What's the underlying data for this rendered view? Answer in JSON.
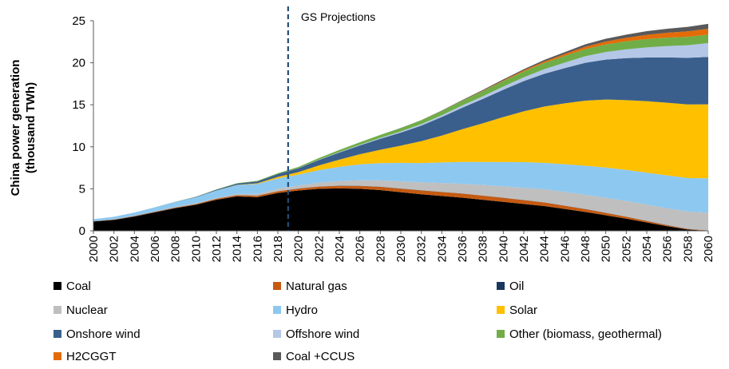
{
  "chart_data": {
    "type": "area",
    "stacked": true,
    "ylabel_line1": "China power generation",
    "ylabel_line2": "(thousand TWh)",
    "ylim": [
      0,
      25
    ],
    "yticks": [
      0,
      5,
      10,
      15,
      20,
      25
    ],
    "x": [
      2000,
      2002,
      2004,
      2006,
      2008,
      2010,
      2012,
      2014,
      2016,
      2018,
      2020,
      2022,
      2024,
      2026,
      2028,
      2030,
      2032,
      2034,
      2036,
      2038,
      2040,
      2042,
      2044,
      2046,
      2048,
      2050,
      2052,
      2054,
      2056,
      2058,
      2060
    ],
    "xtick_labels": [
      "2000",
      "2002",
      "2004",
      "2006",
      "2008",
      "2010",
      "2012",
      "2014",
      "2016",
      "2018",
      "2020",
      "2022",
      "2024",
      "2026",
      "2028",
      "2030",
      "2032",
      "2034",
      "2036",
      "2038",
      "2040",
      "2042",
      "2044",
      "2046",
      "2048",
      "2050",
      "2052",
      "2054",
      "2056",
      "2058",
      "2060"
    ],
    "projection_start": 2019,
    "annotation": "GS Projections",
    "grid": false,
    "legend_position": "bottom",
    "series": [
      {
        "name": "Coal",
        "color": "#000000",
        "values": [
          1.1,
          1.3,
          1.7,
          2.2,
          2.7,
          3.1,
          3.7,
          4.1,
          4.0,
          4.5,
          4.8,
          5.0,
          5.05,
          5.0,
          4.85,
          4.6,
          4.35,
          4.15,
          3.95,
          3.7,
          3.45,
          3.2,
          2.95,
          2.6,
          2.25,
          1.85,
          1.45,
          1.0,
          0.55,
          0.15,
          0.0
        ]
      },
      {
        "name": "Natural gas",
        "color": "#c55a11",
        "values": [
          0.02,
          0.03,
          0.04,
          0.05,
          0.06,
          0.08,
          0.1,
          0.13,
          0.17,
          0.2,
          0.22,
          0.26,
          0.3,
          0.34,
          0.38,
          0.42,
          0.45,
          0.47,
          0.48,
          0.48,
          0.47,
          0.45,
          0.42,
          0.38,
          0.33,
          0.28,
          0.22,
          0.17,
          0.12,
          0.07,
          0.03
        ]
      },
      {
        "name": "Oil",
        "color": "#17375e",
        "values": [
          0.03,
          0.03,
          0.03,
          0.03,
          0.02,
          0.02,
          0.02,
          0.02,
          0.02,
          0.02,
          0.02,
          0.02,
          0.02,
          0.02,
          0.02,
          0.02,
          0.02,
          0.02,
          0.02,
          0.02,
          0.02,
          0.02,
          0.02,
          0.02,
          0.02,
          0.02,
          0.02,
          0.02,
          0.02,
          0.02,
          0.02
        ]
      },
      {
        "name": "Nuclear",
        "color": "#bfbfbf",
        "values": [
          0.02,
          0.03,
          0.05,
          0.06,
          0.07,
          0.07,
          0.1,
          0.13,
          0.2,
          0.29,
          0.35,
          0.45,
          0.55,
          0.65,
          0.75,
          0.85,
          0.95,
          1.05,
          1.15,
          1.25,
          1.35,
          1.45,
          1.55,
          1.62,
          1.7,
          1.78,
          1.86,
          1.94,
          2.0,
          2.05,
          2.1
        ]
      },
      {
        "name": "Hydro",
        "color": "#8dc8f0",
        "values": [
          0.22,
          0.29,
          0.36,
          0.44,
          0.58,
          0.72,
          0.87,
          1.06,
          1.19,
          1.23,
          1.3,
          1.5,
          1.7,
          1.9,
          2.05,
          2.2,
          2.3,
          2.45,
          2.6,
          2.75,
          2.9,
          3.05,
          3.15,
          3.3,
          3.45,
          3.6,
          3.7,
          3.8,
          3.9,
          4.0,
          4.1
        ]
      },
      {
        "name": "Solar",
        "color": "#ffc000",
        "values": [
          0.0,
          0.0,
          0.0,
          0.0,
          0.0,
          0.0,
          0.01,
          0.03,
          0.07,
          0.18,
          0.3,
          0.55,
          0.85,
          1.2,
          1.6,
          2.05,
          2.6,
          3.2,
          3.9,
          4.6,
          5.35,
          6.05,
          6.7,
          7.25,
          7.75,
          8.1,
          8.3,
          8.5,
          8.65,
          8.75,
          8.8
        ]
      },
      {
        "name": "Onshore wind",
        "color": "#3a5f8c",
        "values": [
          0.0,
          0.0,
          0.0,
          0.01,
          0.02,
          0.05,
          0.1,
          0.15,
          0.23,
          0.34,
          0.45,
          0.65,
          0.85,
          1.05,
          1.3,
          1.55,
          1.85,
          2.2,
          2.55,
          2.9,
          3.25,
          3.6,
          3.9,
          4.2,
          4.5,
          4.75,
          5.0,
          5.2,
          5.4,
          5.55,
          5.65
        ]
      },
      {
        "name": "Offshore wind",
        "color": "#b4c7e7",
        "values": [
          0.0,
          0.0,
          0.0,
          0.0,
          0.0,
          0.0,
          0.0,
          0.0,
          0.0,
          0.0,
          0.01,
          0.03,
          0.05,
          0.08,
          0.11,
          0.14,
          0.18,
          0.22,
          0.27,
          0.32,
          0.38,
          0.45,
          0.55,
          0.65,
          0.78,
          0.9,
          1.05,
          1.2,
          1.35,
          1.5,
          1.65
        ]
      },
      {
        "name": "Other (biomass, geothermal)",
        "color": "#70ad47",
        "values": [
          0.0,
          0.0,
          0.0,
          0.0,
          0.01,
          0.02,
          0.03,
          0.05,
          0.07,
          0.1,
          0.15,
          0.2,
          0.25,
          0.3,
          0.35,
          0.4,
          0.45,
          0.5,
          0.55,
          0.6,
          0.65,
          0.7,
          0.75,
          0.8,
          0.85,
          0.9,
          0.95,
          1.0,
          1.0,
          1.0,
          1.0
        ]
      },
      {
        "name": "H2CGGT",
        "color": "#e36c09",
        "values": [
          0.0,
          0.0,
          0.0,
          0.0,
          0.0,
          0.0,
          0.0,
          0.0,
          0.0,
          0.0,
          0.0,
          0.0,
          0.0,
          0.0,
          0.0,
          0.0,
          0.0,
          0.01,
          0.03,
          0.05,
          0.08,
          0.12,
          0.16,
          0.22,
          0.28,
          0.35,
          0.42,
          0.5,
          0.58,
          0.65,
          0.7
        ]
      },
      {
        "name": "Coal +CCUS",
        "color": "#595959",
        "values": [
          0.0,
          0.0,
          0.0,
          0.0,
          0.0,
          0.0,
          0.0,
          0.0,
          0.0,
          0.0,
          0.0,
          0.0,
          0.0,
          0.0,
          0.01,
          0.02,
          0.03,
          0.05,
          0.07,
          0.09,
          0.12,
          0.15,
          0.19,
          0.23,
          0.28,
          0.33,
          0.38,
          0.43,
          0.48,
          0.53,
          0.58
        ]
      }
    ]
  }
}
